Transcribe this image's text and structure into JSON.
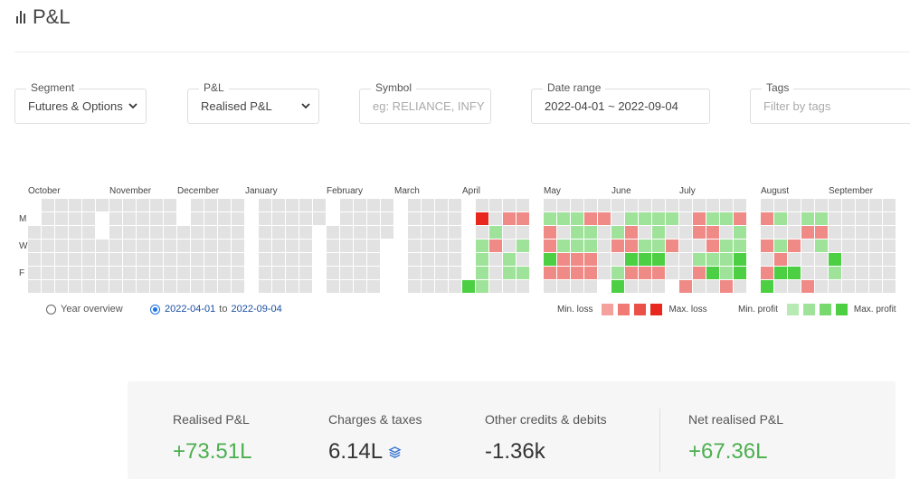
{
  "page": {
    "title": "P&L",
    "title_icon": "bar-chart-icon"
  },
  "filters": {
    "segment": {
      "label": "Segment",
      "value": "Futures & Options"
    },
    "pnl": {
      "label": "P&L",
      "value": "Realised P&L"
    },
    "symbol": {
      "label": "Symbol",
      "placeholder": "eg: RELIANCE, INFY"
    },
    "date_range": {
      "label": "Date range",
      "value": "2022-04-01 ~ 2022-09-04"
    },
    "tags": {
      "label": "Tags",
      "placeholder": "Filter by tags"
    }
  },
  "calendar": {
    "months": [
      "October",
      "November",
      "December",
      "January",
      "February",
      "March",
      "April",
      "May",
      "June",
      "July",
      "August",
      "September"
    ],
    "day_labels": [
      "M",
      "W",
      "F"
    ],
    "colors": {
      "empty": "#e2e2e2",
      "max_loss": "#e8271f",
      "loss": "#f08a86",
      "profit": "#9fe39a",
      "max_profit": "#4ccf42"
    }
  },
  "view_options": {
    "year_overview": "Year overview",
    "range_from": "2022-04-01",
    "range_to_word": "to",
    "range_to": "2022-09-04"
  },
  "legend": {
    "min_loss": "Min. loss",
    "max_loss": "Max. loss",
    "min_profit": "Min. profit",
    "max_profit": "Max. profit",
    "loss_colors": [
      "#f4a09c",
      "#f07a74",
      "#eb5048",
      "#e8271f"
    ],
    "profit_colors": [
      "#b8ebb3",
      "#9fe39a",
      "#78d96f",
      "#4ccf42"
    ]
  },
  "summary": {
    "realised": {
      "label": "Realised P&L",
      "value": "+73.51L"
    },
    "charges": {
      "label": "Charges & taxes",
      "value": "6.14L",
      "icon": "layers-icon"
    },
    "other": {
      "label": "Other credits & debits",
      "value": "-1.36k"
    },
    "net": {
      "label": "Net realised P&L",
      "value": "+67.36L"
    }
  }
}
